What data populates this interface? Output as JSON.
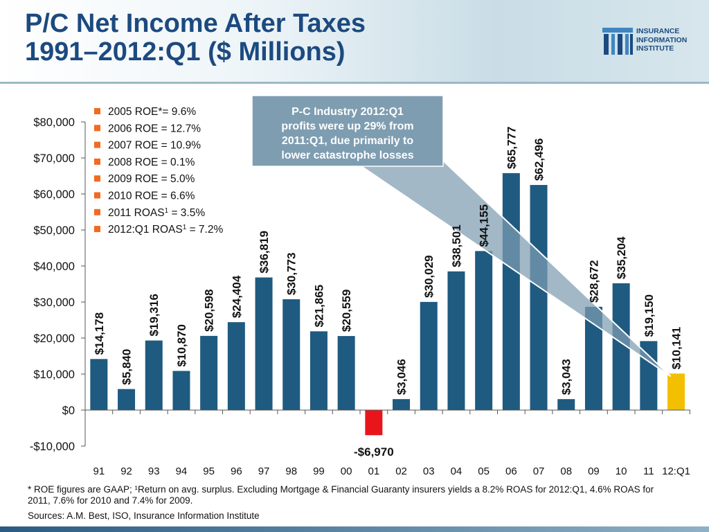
{
  "title_line1": "P/C Net Income After Taxes",
  "title_line2": "1991–2012:Q1 ($ Millions)",
  "logo": {
    "line1": "INSURANCE",
    "line2": "INFORMATION",
    "line3": "INSTITUTE"
  },
  "callout": {
    "lines": [
      "P-C Industry 2012:Q1",
      "profits were up 29% from",
      "2011:Q1, due primarily to",
      "lower catastrophe losses"
    ]
  },
  "legend": [
    {
      "text": "2005 ROE*= 9.6%"
    },
    {
      "text": "2006 ROE = 12.7%"
    },
    {
      "text": "2007 ROE = 10.9%"
    },
    {
      "text": "2008 ROE = 0.1%"
    },
    {
      "text": "2009 ROE = 5.0%"
    },
    {
      "text": "2010 ROE = 6.6%"
    },
    {
      "text": "2011 ROAS",
      "sup": "1",
      "rest": " = 3.5%"
    },
    {
      "text": "2012:Q1 ROAS",
      "sup": "1",
      "rest": " = 7.2%"
    }
  ],
  "footnote": "* ROE figures are GAAP; ¹Return on avg. surplus.  Excluding Mortgage & Financial Guaranty insurers yields a 8.2% ROAS for 2012:Q1, 4.6% ROAS for 2011, 7.6% for 2010 and 7.4% for 2009.",
  "sources": "Sources: A.M. Best, ISO, Insurance Information Institute",
  "colors": {
    "bar": "#1f5a80",
    "negative": "#e8161b",
    "highlight": "#f2c000",
    "title": "#1c4a80",
    "legend_marker": "#f26a21",
    "callout_bg": "#7e9db1"
  },
  "chart_data": {
    "type": "bar",
    "categories": [
      "91",
      "92",
      "93",
      "94",
      "95",
      "96",
      "97",
      "98",
      "99",
      "00",
      "01",
      "02",
      "03",
      "04",
      "05",
      "06",
      "07",
      "08",
      "09",
      "10",
      "11",
      "12:Q1"
    ],
    "values": [
      14178,
      5840,
      19316,
      10870,
      20598,
      24404,
      36819,
      30773,
      21865,
      20559,
      -6970,
      3046,
      30029,
      38501,
      44155,
      65777,
      62496,
      3043,
      28672,
      35204,
      19150,
      10141
    ],
    "labels": [
      "$14,178",
      "$5,840",
      "$19,316",
      "$10,870",
      "$20,598",
      "$24,404",
      "$36,819",
      "$30,773",
      "$21,865",
      "$20,559",
      "-$6,970",
      "$3,046",
      "$30,029",
      "$38,501",
      "$44,155",
      "$65,777",
      "$62,496",
      "$3,043",
      "$28,672",
      "$35,204",
      "$19,150",
      "$10,141"
    ],
    "yticks": [
      -10000,
      0,
      10000,
      20000,
      30000,
      40000,
      50000,
      60000,
      70000,
      80000
    ],
    "ytick_labels": [
      "-$10,000",
      "$0",
      "$10,000",
      "$20,000",
      "$30,000",
      "$40,000",
      "$50,000",
      "$60,000",
      "$70,000",
      "$80,000"
    ],
    "ylim": [
      -10000,
      80000
    ],
    "grid": false,
    "legend_position": "top-left"
  }
}
